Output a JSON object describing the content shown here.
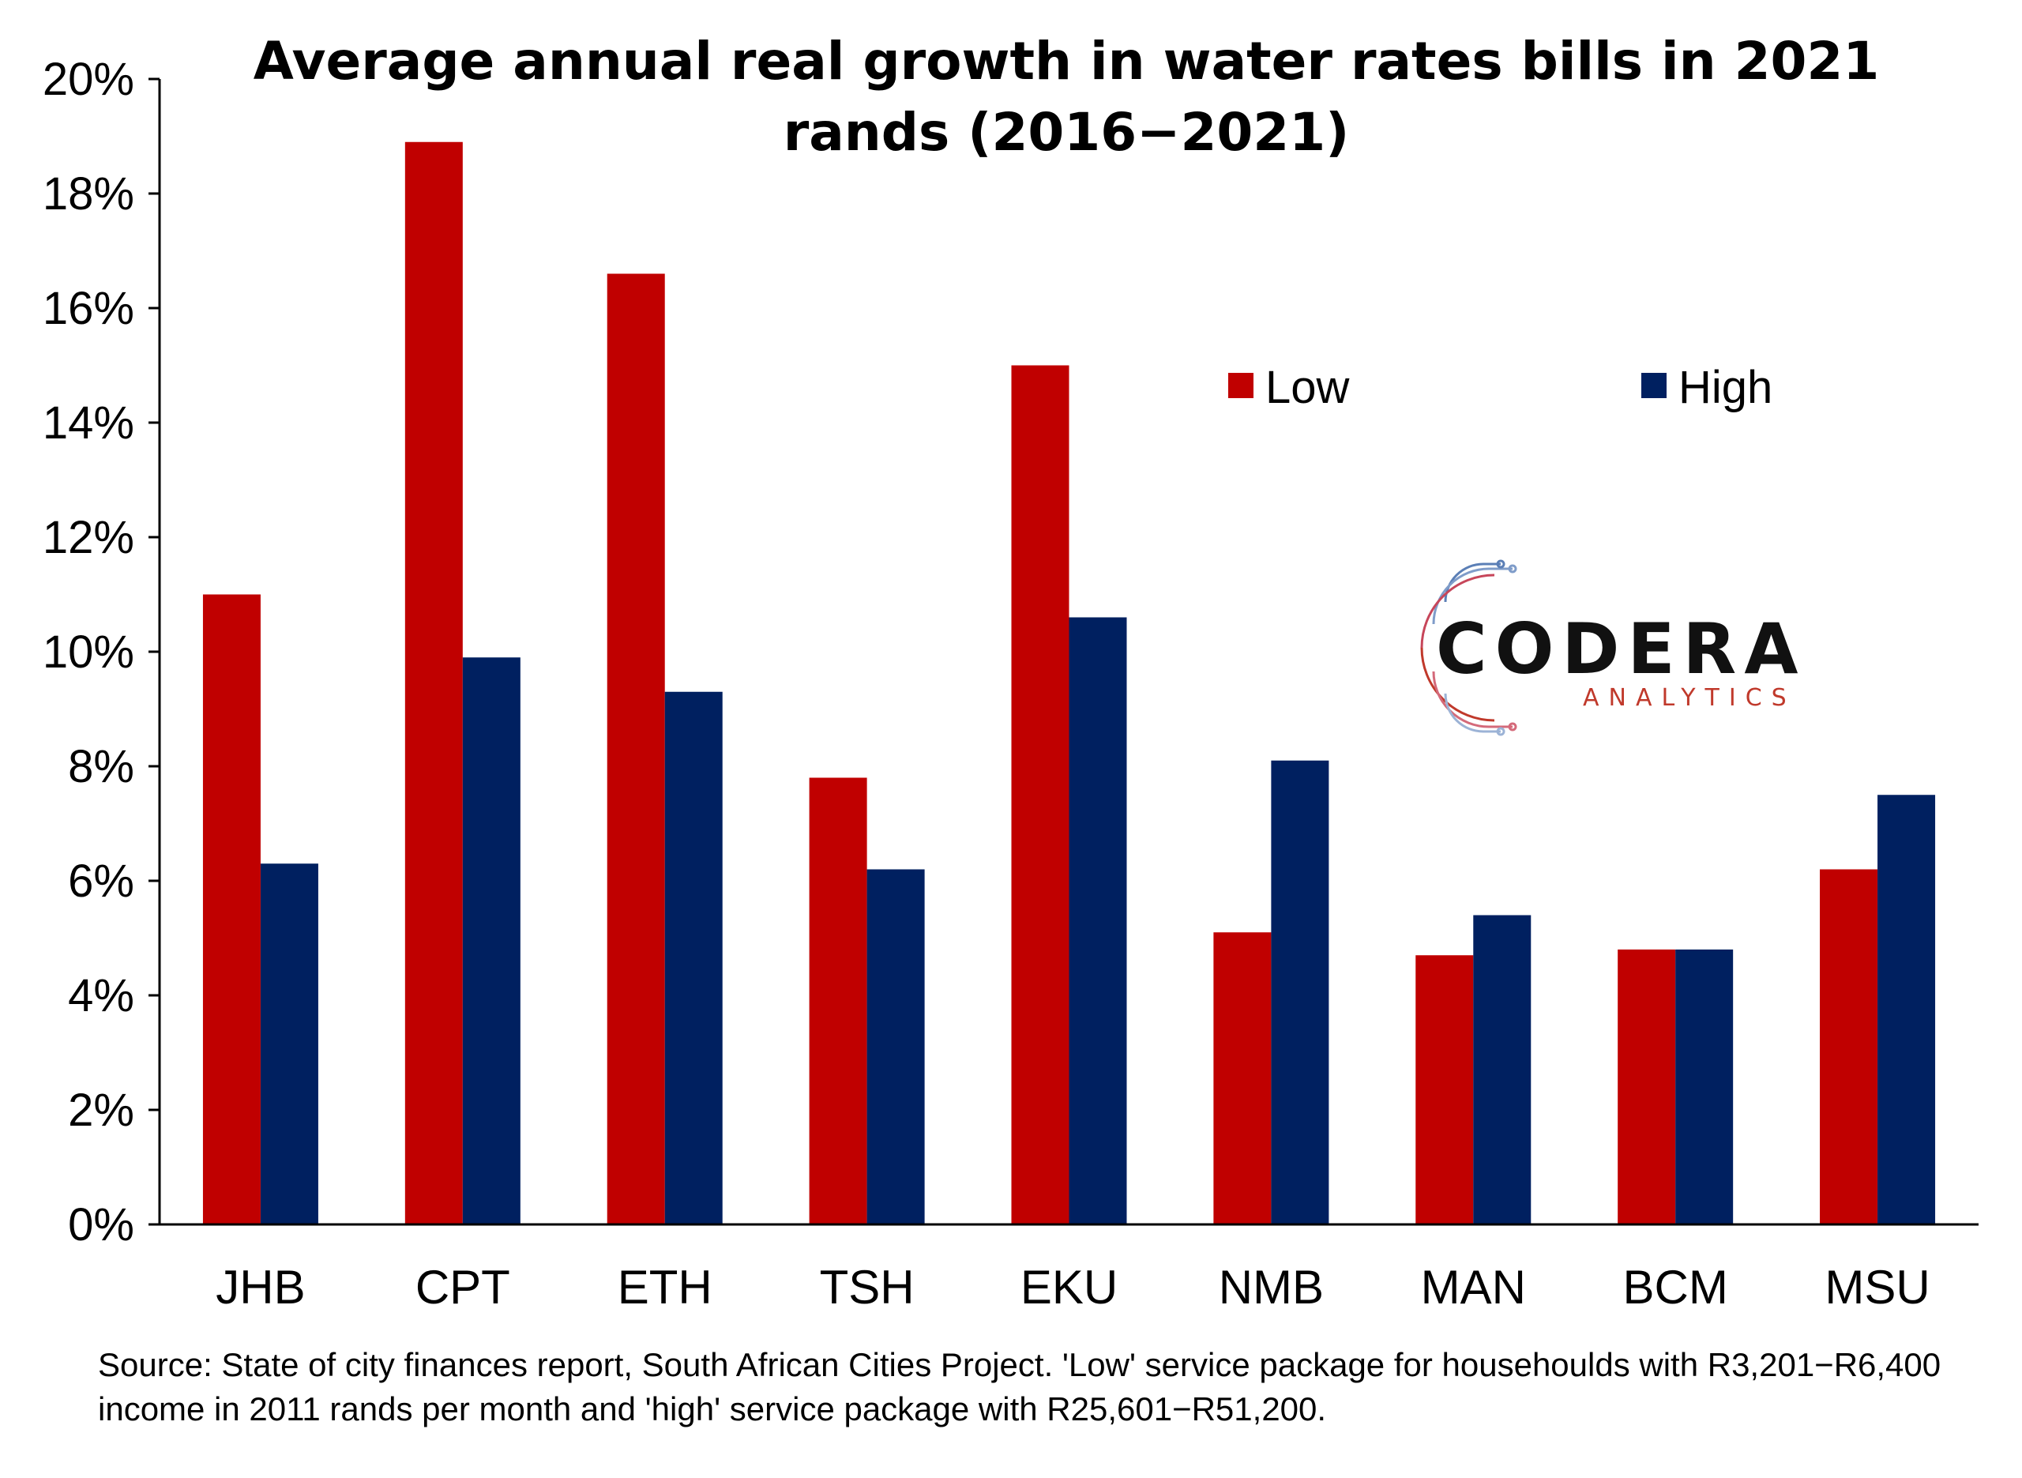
{
  "chart_data": {
    "type": "bar",
    "title_lines": [
      "Average annual real growth in water rates bills in 2021",
      "rands (2016−2021)"
    ],
    "categories": [
      "JHB",
      "CPT",
      "ETH",
      "TSH",
      "EKU",
      "NMB",
      "MAN",
      "BCM",
      "MSU"
    ],
    "series": [
      {
        "name": "Low",
        "color": "#c00000",
        "values": [
          11.0,
          18.9,
          16.6,
          7.8,
          15.0,
          5.1,
          4.7,
          4.8,
          6.2
        ]
      },
      {
        "name": "High",
        "color": "#002060",
        "values": [
          6.3,
          9.9,
          9.3,
          6.2,
          10.6,
          8.1,
          5.4,
          4.8,
          7.5
        ]
      }
    ],
    "y_ticks": [
      "0%",
      "2%",
      "4%",
      "6%",
      "8%",
      "10%",
      "12%",
      "14%",
      "16%",
      "18%",
      "20%"
    ],
    "ylim": [
      0,
      20
    ],
    "y_unit": "%",
    "grid": false,
    "legend_position": "top-right"
  },
  "logo": {
    "name": "CODERA",
    "tagline": "ANALYTICS",
    "icon": "circuit-circle-icon"
  },
  "source_note": "Source: State of city finances report, South African Cities Project. 'Low' service package for househoulds with R3,201−R6,400 income in 2011 rands per month and 'high' service package with R25,601−R51,200."
}
